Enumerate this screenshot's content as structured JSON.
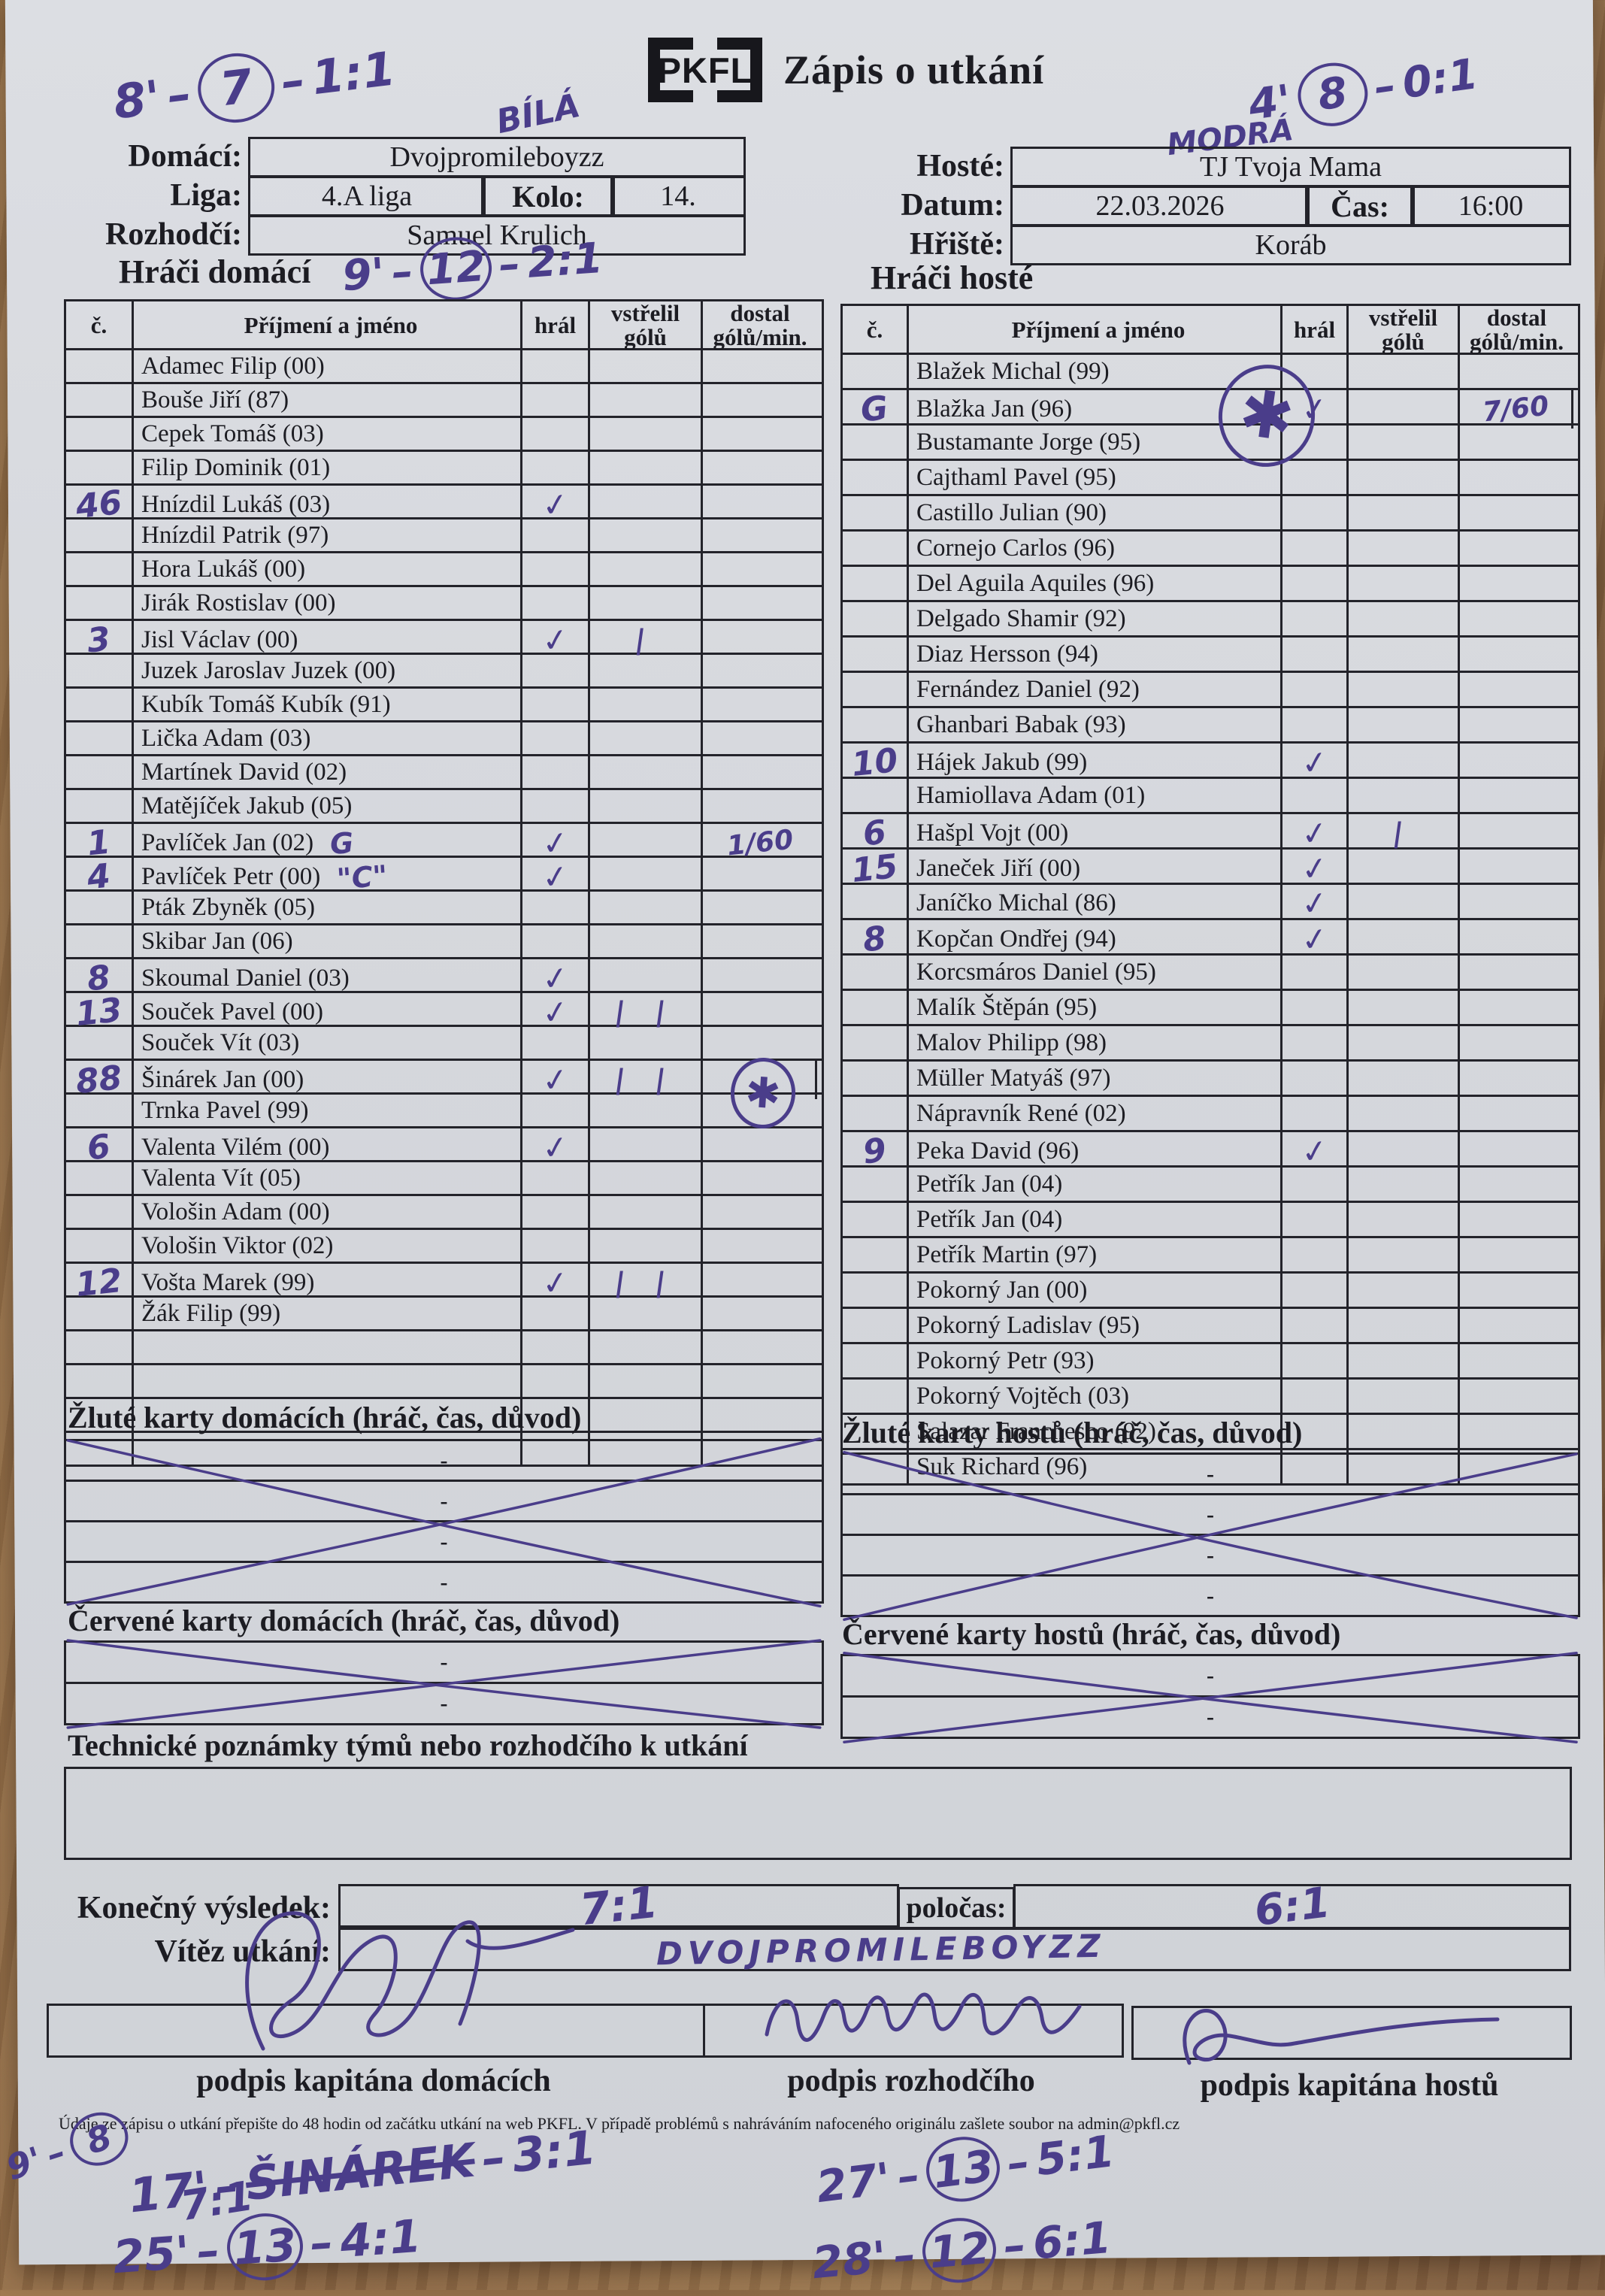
{
  "page": {
    "logo": "PKFL",
    "title": "Zápis o utkání"
  },
  "header": {
    "home_label": "Domácí:",
    "home_team": "Dvojpromileboyzz",
    "liga_label": "Liga:",
    "liga": "4.A liga",
    "kolo_label": "Kolo:",
    "kolo": "14.",
    "rozhodci_label": "Rozhodčí:",
    "rozhodci": "Samuel Krulich",
    "guest_label": "Hosté:",
    "guest_team": "TJ Tvoja Mama",
    "datum_label": "Datum:",
    "datum": "22.03.2026",
    "cas_label": "Čas:",
    "cas": "16:00",
    "hriste_label": "Hřiště:",
    "hriste": "Koráb",
    "home_players_title": "Hráči domácí",
    "guest_players_title": "Hráči hosté"
  },
  "table_headers": {
    "num": "č.",
    "name": "Příjmení a jméno",
    "played": "hrál",
    "scored": "vstřelil\ngólů",
    "conceded": "dostal\ngólů/min."
  },
  "home_players": [
    {
      "name": "Adamec Filip (00)"
    },
    {
      "name": "Bouše Jiří (87)"
    },
    {
      "name": "Cepek Tomáš (03)"
    },
    {
      "name": "Filip Dominik (01)"
    },
    {
      "name": "Hnízdil Lukáš (03)",
      "num": "46",
      "played": "✓"
    },
    {
      "name": "Hnízdil Patrik (97)"
    },
    {
      "name": "Hora Lukáš (00)"
    },
    {
      "name": "Jirák Rostislav (00)"
    },
    {
      "name": "Jisl Václav (00)",
      "num": "3",
      "played": "✓",
      "scored": "|"
    },
    {
      "name": "Juzek Jaroslav Juzek (00)"
    },
    {
      "name": "Kubík Tomáš Kubík (91)"
    },
    {
      "name": "Lička Adam (03)"
    },
    {
      "name": "Martínek David (02)"
    },
    {
      "name": "Matějíček Jakub (05)"
    },
    {
      "name": "Pavlíček Jan (02)",
      "num": "1",
      "note": "G",
      "played": "✓",
      "conceded": "1/60"
    },
    {
      "name": "Pavlíček Petr (00)",
      "num": "4",
      "note": "\"C\"",
      "played": "✓"
    },
    {
      "name": "Pták Zbyněk (05)"
    },
    {
      "name": "Skibar Jan (06)"
    },
    {
      "name": "Skoumal Daniel (03)",
      "num": "8",
      "played": "✓"
    },
    {
      "name": "Souček Pavel (00)",
      "num": "13",
      "played": "✓",
      "scored": "| |"
    },
    {
      "name": "Souček Vít (03)"
    },
    {
      "name": "Šinárek Jan (00)",
      "num": "88",
      "played": "✓",
      "scored": "| |",
      "star": "conceded"
    },
    {
      "name": "Trnka Pavel (99)"
    },
    {
      "name": "Valenta Vilém (00)",
      "num": "6",
      "played": "✓"
    },
    {
      "name": "Valenta Vít (05)"
    },
    {
      "name": "Vološin Adam (00)"
    },
    {
      "name": "Vološin Viktor (02)"
    },
    {
      "name": "Vošta Marek (99)",
      "num": "12",
      "played": "✓",
      "scored": "| |"
    },
    {
      "name": "Žák Filip (99)"
    },
    {
      "name": ""
    },
    {
      "name": ""
    },
    {
      "name": ""
    },
    {
      "name": ""
    }
  ],
  "guest_players": [
    {
      "name": "Blažek Michal (99)"
    },
    {
      "name": "Blažka Jan (96)",
      "num": "G",
      "played": "✓",
      "conceded": "7/60",
      "star": "name"
    },
    {
      "name": "Bustamante Jorge (95)"
    },
    {
      "name": "Cajthaml Pavel (95)"
    },
    {
      "name": "Castillo Julian (90)"
    },
    {
      "name": "Cornejo Carlos (96)"
    },
    {
      "name": "Del Aguila Aquiles (96)"
    },
    {
      "name": "Delgado Shamir (92)"
    },
    {
      "name": "Diaz Hersson (94)"
    },
    {
      "name": "Fernández Daniel (92)"
    },
    {
      "name": "Ghanbari Babak (93)"
    },
    {
      "name": "Hájek Jakub (99)",
      "num": "10",
      "played": "✓"
    },
    {
      "name": "Hamiollava Adam (01)"
    },
    {
      "name": "Hašpl Vojt (00)",
      "num": "6",
      "played": "✓",
      "scored": "|"
    },
    {
      "name": "Janeček Jiří (00)",
      "num": "15",
      "played": "✓"
    },
    {
      "name": "Janíčko Michal (86)",
      "played": "✓"
    },
    {
      "name": "Kopčan Ondřej (94)",
      "num": "8",
      "played": "✓"
    },
    {
      "name": "Korcsmáros Daniel (95)"
    },
    {
      "name": "Malík Štěpán (95)"
    },
    {
      "name": "Malov Philipp (98)"
    },
    {
      "name": "Müller Matyáš (97)"
    },
    {
      "name": "Nápravník René (02)"
    },
    {
      "name": "Peka David (96)",
      "num": "9",
      "played": "✓"
    },
    {
      "name": "Petřík Jan (04)"
    },
    {
      "name": "Petřík Jan (04)"
    },
    {
      "name": "Petřík Martin (97)"
    },
    {
      "name": "Pokorný Jan (00)"
    },
    {
      "name": "Pokorný Ladislav (95)"
    },
    {
      "name": "Pokorný Petr (93)"
    },
    {
      "name": "Pokorný Vojtěch (03)"
    },
    {
      "name": "Salazar Franchesco (92)"
    },
    {
      "name": "Suk Richard (96)"
    }
  ],
  "cards": {
    "yellow_home": "Žluté karty domácích (hráč, čas, důvod)",
    "yellow_guest": "Žluté karty hostů (hráč, čas, důvod)",
    "red_home": "Červené karty domácích (hráč, čas, důvod)",
    "red_guest": "Červené karty hostů (hráč, čas, důvod)",
    "tech_notes": "Technické poznámky týmů nebo rozhodčího k utkání",
    "row_placeholder": "-"
  },
  "result": {
    "final_label": "Konečný výsledek:",
    "final": "7:1",
    "halftime_label": "poločas:",
    "halftime": "6:1",
    "winner_label": "Vítěz utkání:",
    "winner": "DVOJPROMILEBOYZZ"
  },
  "signatures": {
    "home": "podpis kapitána domácích",
    "referee": "podpis rozhodčího",
    "guest": "podpis kapitána hostů"
  },
  "footer": "Údaje ze zápisu o utkání přepište do 48 hodin od začátku utkání na web PKFL. V případě problémů s nahráváním nafoceného originálu zašlete soubor na admin@pkfl.cz",
  "annotations": {
    "top_left": {
      "minute": "8'",
      "player": "7",
      "score": "1:1"
    },
    "team_home": "BÍLÁ",
    "top_right": {
      "minute": "4'",
      "player": "8",
      "score": "0:1"
    },
    "team_guest": "MODRÁ",
    "second_goal": {
      "minute": "9'",
      "player": "12",
      "score": "2:1"
    },
    "final_goal": {
      "minute": "9'",
      "player": "8",
      "score": "7:1"
    },
    "notes": [
      {
        "minute": "17'",
        "player": "ŠINÁREK",
        "score": "3:1",
        "struck": true
      },
      {
        "minute": "27'",
        "player": "13",
        "score": "5:1"
      },
      {
        "minute": "25'",
        "player": "13",
        "score": "4:1"
      },
      {
        "minute": "28'",
        "player": "12",
        "score": "6:1"
      }
    ]
  },
  "colors": {
    "pen": "#4a3d8a",
    "ink": "#1c1c22",
    "paper": "#d6d8dc",
    "wood": "#8a6746"
  }
}
